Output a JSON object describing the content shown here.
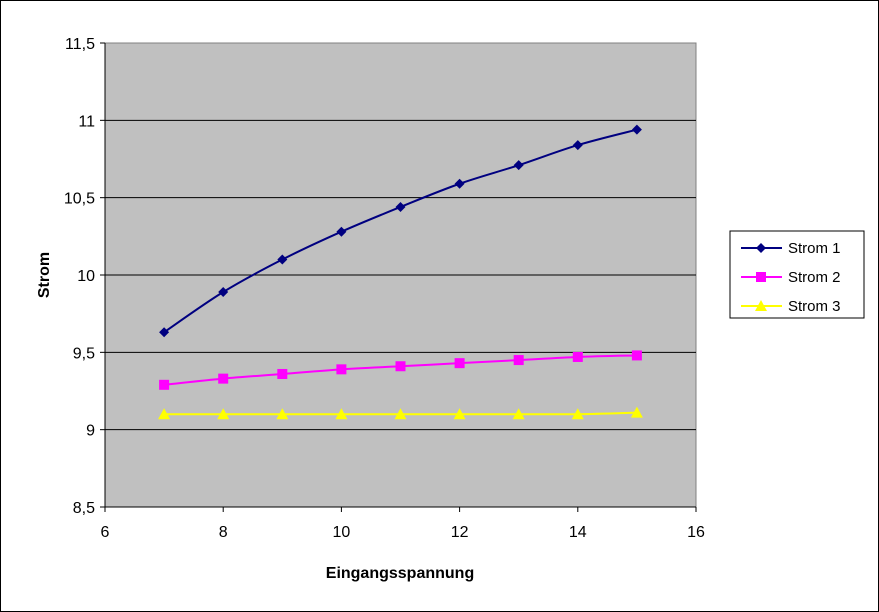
{
  "chart_data": {
    "type": "line",
    "title": "",
    "xlabel": "Eingangsspannung",
    "ylabel": "Strom",
    "xlim": [
      6,
      16
    ],
    "ylim": [
      8.5,
      11.5
    ],
    "x_ticks": [
      6,
      8,
      10,
      12,
      14,
      16
    ],
    "x_tick_labels": [
      "6",
      "8",
      "10",
      "12",
      "14",
      "16"
    ],
    "y_ticks": [
      8.5,
      9,
      9.5,
      10,
      10.5,
      11,
      11.5
    ],
    "y_tick_labels": [
      "8,5",
      "9",
      "9,5",
      "10",
      "10,5",
      "11",
      "11,5"
    ],
    "grid": "horizontal",
    "plot_background": "#c0c0c0",
    "legend_position": "right",
    "x": [
      7,
      8,
      9,
      10,
      11,
      12,
      13,
      14,
      15
    ],
    "series": [
      {
        "name": "Strom 1",
        "color": "#000080",
        "marker": "diamond",
        "values": [
          9.63,
          9.89,
          10.1,
          10.28,
          10.44,
          10.59,
          10.71,
          10.84,
          10.94
        ]
      },
      {
        "name": "Strom 2",
        "color": "#ff00ff",
        "marker": "square",
        "values": [
          9.29,
          9.33,
          9.36,
          9.39,
          9.41,
          9.43,
          9.45,
          9.47,
          9.48
        ]
      },
      {
        "name": "Strom 3",
        "color": "#ffff00",
        "marker": "triangle",
        "values": [
          9.1,
          9.1,
          9.1,
          9.1,
          9.1,
          9.1,
          9.1,
          9.1,
          9.11
        ]
      }
    ]
  }
}
